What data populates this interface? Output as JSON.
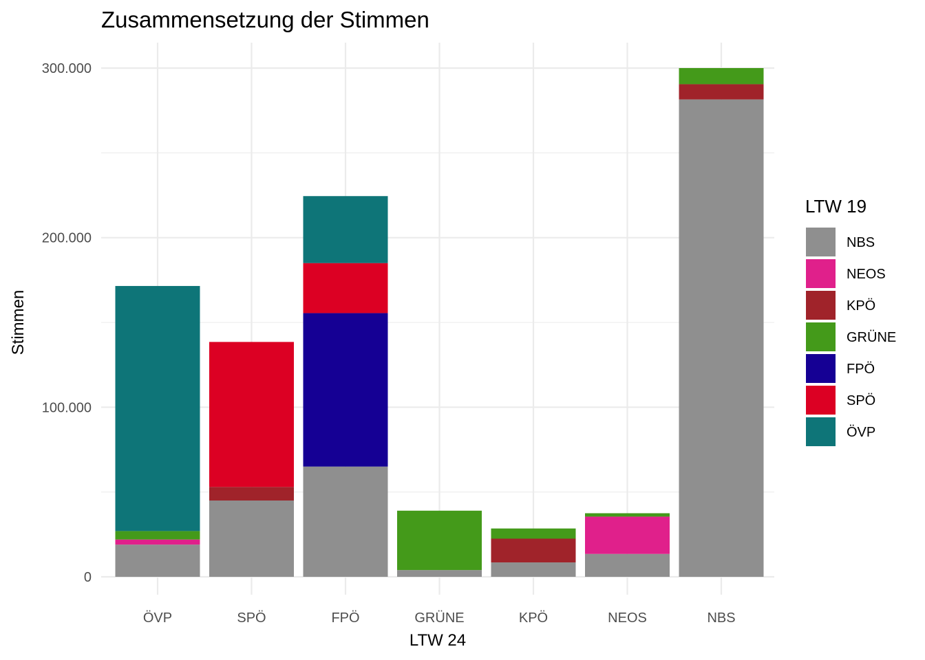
{
  "chart_data": {
    "type": "bar",
    "stacked": true,
    "title": "Zusammensetzung der Stimmen",
    "xlabel": "LTW 24",
    "ylabel": "Stimmen",
    "ylim": [
      0,
      315000
    ],
    "yticks": [
      {
        "value": 0,
        "label": "0"
      },
      {
        "value": 100000,
        "label": "100.000"
      },
      {
        "value": 200000,
        "label": "200.000"
      },
      {
        "value": 300000,
        "label": "300.000"
      }
    ],
    "categories": [
      "ÖVP",
      "SPÖ",
      "FPÖ",
      "GRÜNE",
      "KPÖ",
      "NEOS",
      "NBS"
    ],
    "legend_title": "LTW 19",
    "legend_position": "right",
    "grid": true,
    "series": [
      {
        "name": "NBS",
        "color": "#8f8f8f",
        "values": [
          19000,
          45000,
          65000,
          4000,
          8500,
          13500,
          281500
        ]
      },
      {
        "name": "NEOS",
        "color": "#e0208b",
        "values": [
          3000,
          0,
          0,
          0,
          0,
          22000,
          0
        ]
      },
      {
        "name": "KPÖ",
        "color": "#a0232a",
        "values": [
          0,
          8000,
          0,
          0,
          14000,
          0,
          9000
        ]
      },
      {
        "name": "GRÜNE",
        "color": "#449a1a",
        "values": [
          5000,
          0,
          0,
          35000,
          6000,
          2000,
          9500
        ]
      },
      {
        "name": "FPÖ",
        "color": "#150094",
        "values": [
          0,
          0,
          90500,
          0,
          0,
          0,
          0
        ]
      },
      {
        "name": "SPÖ",
        "color": "#dc0023",
        "values": [
          0,
          85500,
          29500,
          0,
          0,
          0,
          0
        ]
      },
      {
        "name": "ÖVP",
        "color": "#0e7578",
        "values": [
          144500,
          0,
          39500,
          0,
          0,
          0,
          0
        ]
      }
    ]
  }
}
